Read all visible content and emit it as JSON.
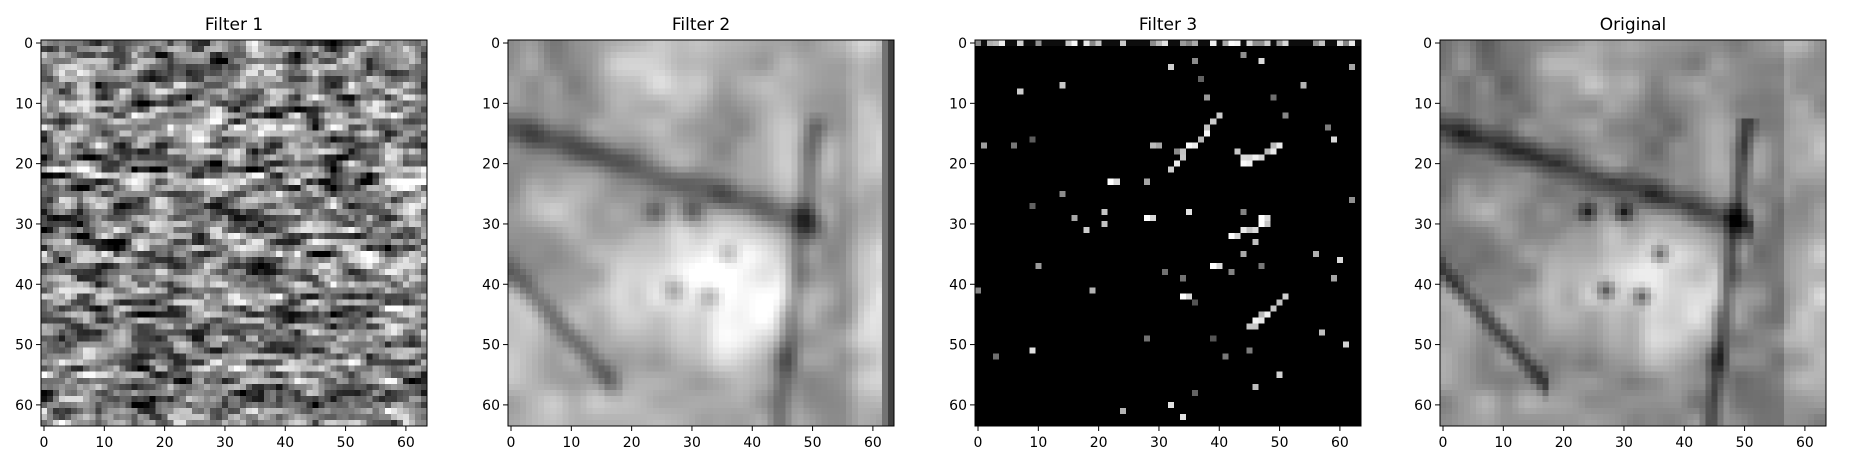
{
  "chart_data": [
    {
      "type": "heatmap",
      "title": "Filter 1",
      "colormap": "gray",
      "xlim": [
        0,
        63
      ],
      "ylim": [
        0,
        63
      ],
      "xticks": [
        0,
        10,
        20,
        30,
        40,
        50,
        60
      ],
      "yticks": [
        0,
        10,
        20,
        30,
        40,
        50,
        60
      ],
      "xtick_labels": [
        "0",
        "10",
        "20",
        "30",
        "40",
        "50",
        "60"
      ],
      "ytick_labels": [
        "0",
        "10",
        "20",
        "30",
        "40",
        "50",
        "60"
      ],
      "grid": false,
      "texture": "high-contrast horizontal streaks"
    },
    {
      "type": "heatmap",
      "title": "Filter 2",
      "colormap": "gray",
      "xlim": [
        0,
        63
      ],
      "ylim": [
        0,
        63
      ],
      "xticks": [
        0,
        10,
        20,
        30,
        40,
        50,
        60
      ],
      "yticks": [
        0,
        10,
        20,
        30,
        40,
        50,
        60
      ],
      "xtick_labels": [
        "0",
        "10",
        "20",
        "30",
        "40",
        "50",
        "60"
      ],
      "ytick_labels": [
        "0",
        "10",
        "20",
        "30",
        "40",
        "50",
        "60"
      ],
      "grid": false,
      "texture": "smoothed tissue image"
    },
    {
      "type": "heatmap",
      "title": "Filter 3",
      "colormap": "gray",
      "xlim": [
        0,
        63
      ],
      "ylim": [
        0,
        63
      ],
      "xticks": [
        0,
        10,
        20,
        30,
        40,
        50,
        60
      ],
      "yticks": [
        0,
        10,
        20,
        30,
        40,
        50,
        60
      ],
      "xtick_labels": [
        "0",
        "10",
        "20",
        "30",
        "40",
        "50",
        "60"
      ],
      "ytick_labels": [
        "0",
        "10",
        "20",
        "30",
        "40",
        "50",
        "60"
      ],
      "grid": false,
      "texture": "mostly black with sparse bright edges"
    },
    {
      "type": "heatmap",
      "title": "Original",
      "colormap": "gray",
      "xlim": [
        0,
        63
      ],
      "ylim": [
        0,
        63
      ],
      "xticks": [
        0,
        10,
        20,
        30,
        40,
        50,
        60
      ],
      "yticks": [
        0,
        10,
        20,
        30,
        40,
        50,
        60
      ],
      "xtick_labels": [
        "0",
        "10",
        "20",
        "30",
        "40",
        "50",
        "60"
      ],
      "ytick_labels": [
        "0",
        "10",
        "20",
        "30",
        "40",
        "50",
        "60"
      ],
      "grid": false,
      "texture": "grayscale tissue image"
    }
  ]
}
